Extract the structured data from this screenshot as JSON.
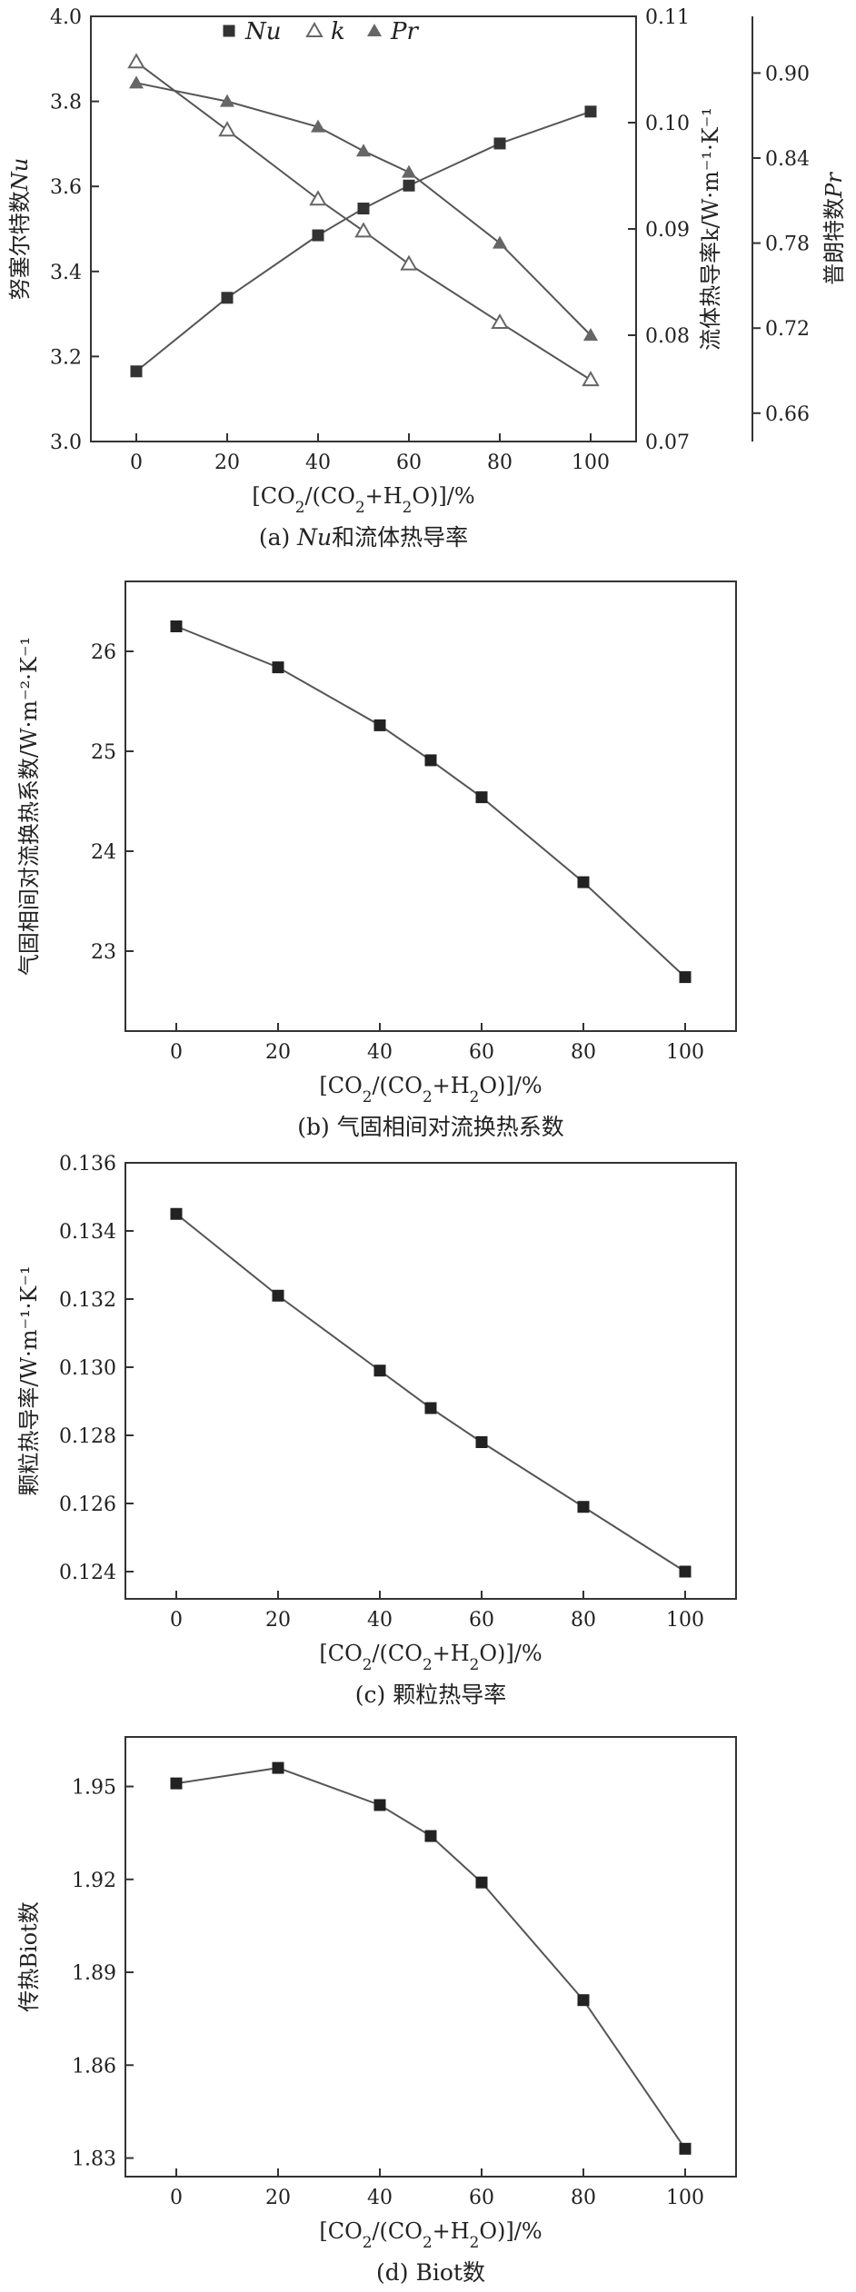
{
  "chart_data": [
    {
      "id": "a",
      "type": "line",
      "caption": "(a) Nu和流体热导率",
      "xlabel": "[CO2/(CO2+H2O)]/%",
      "xlim": [
        -10,
        110
      ],
      "xticks": [
        0,
        20,
        40,
        60,
        80,
        100
      ],
      "x": [
        0,
        20,
        40,
        50,
        60,
        80,
        100
      ],
      "legend_position": "top",
      "axes": {
        "left": {
          "label": "努塞尔特数Nu",
          "ylim": [
            3.0,
            4.0
          ],
          "ticks": [
            "3.0",
            "3.2",
            "3.4",
            "3.6",
            "3.8",
            "4.0"
          ]
        },
        "right1": {
          "label": "流体热导率k/W·m⁻¹·K⁻¹",
          "ylim": [
            0.07,
            0.11
          ],
          "ticks": [
            "0.07",
            "0.08",
            "0.09",
            "0.10",
            "0.11"
          ]
        },
        "right2": {
          "label": "普朗特数Pr",
          "ylim": [
            0.64,
            0.94
          ],
          "ticks": [
            "0.66",
            "0.72",
            "0.78",
            "0.84",
            "0.90"
          ]
        }
      },
      "series": [
        {
          "name": "Nu",
          "axis": "left",
          "marker": "square",
          "color": "#333333",
          "values": [
            3.165,
            3.338,
            3.485,
            3.548,
            3.602,
            3.701,
            3.776
          ]
        },
        {
          "name": "k",
          "axis": "right1",
          "marker": "triangle-open",
          "color": "#666666",
          "values": [
            0.1057,
            0.0993,
            0.0928,
            0.0898,
            0.0867,
            0.0812,
            0.0758
          ]
        },
        {
          "name": "Pr",
          "axis": "right2",
          "marker": "triangle-filled",
          "color": "#666666",
          "values": [
            0.893,
            0.88,
            0.862,
            0.845,
            0.83,
            0.78,
            0.715
          ]
        }
      ]
    },
    {
      "id": "b",
      "type": "line",
      "caption": "(b) 气固相间对流换热系数",
      "xlabel": "[CO2/(CO2+H2O)]/%",
      "ylabel": "气固相间对流换热系数/W·m⁻²·K⁻¹",
      "xlim": [
        -10,
        110
      ],
      "ylim": [
        22.2,
        26.7
      ],
      "xticks": [
        0,
        20,
        40,
        60,
        80,
        100
      ],
      "yticks": [
        "23",
        "24",
        "25",
        "26"
      ],
      "x": [
        0,
        20,
        40,
        50,
        60,
        80,
        100
      ],
      "series": [
        {
          "marker": "square",
          "color": "#222222",
          "values": [
            26.25,
            25.84,
            25.26,
            24.91,
            24.54,
            23.69,
            22.74
          ]
        }
      ]
    },
    {
      "id": "c",
      "type": "line",
      "caption": "(c) 颗粒热导率",
      "xlabel": "[CO2/(CO2+H2O)]/%",
      "ylabel": "颗粒热导率/W·m⁻¹·K⁻¹",
      "xlim": [
        -10,
        110
      ],
      "ylim": [
        0.1232,
        0.136
      ],
      "xticks": [
        0,
        20,
        40,
        60,
        80,
        100
      ],
      "yticks": [
        "0.124",
        "0.126",
        "0.128",
        "0.130",
        "0.132",
        "0.134",
        "0.136"
      ],
      "x": [
        0,
        20,
        40,
        50,
        60,
        80,
        100
      ],
      "series": [
        {
          "marker": "square",
          "color": "#222222",
          "values": [
            0.1345,
            0.1321,
            0.1299,
            0.1288,
            0.1278,
            0.1259,
            0.124
          ]
        }
      ]
    },
    {
      "id": "d",
      "type": "line",
      "caption": "(d) Biot数",
      "xlabel": "[CO2/(CO2+H2O)]/%",
      "ylabel": "传热Biot数",
      "xlim": [
        -10,
        110
      ],
      "ylim": [
        1.824,
        1.966
      ],
      "xticks": [
        0,
        20,
        40,
        60,
        80,
        100
      ],
      "yticks": [
        "1.83",
        "1.86",
        "1.89",
        "1.92",
        "1.95"
      ],
      "x": [
        0,
        20,
        40,
        50,
        60,
        80,
        100
      ],
      "series": [
        {
          "marker": "square",
          "color": "#222222",
          "values": [
            1.951,
            1.956,
            1.944,
            1.934,
            1.919,
            1.881,
            1.833
          ]
        }
      ]
    }
  ]
}
